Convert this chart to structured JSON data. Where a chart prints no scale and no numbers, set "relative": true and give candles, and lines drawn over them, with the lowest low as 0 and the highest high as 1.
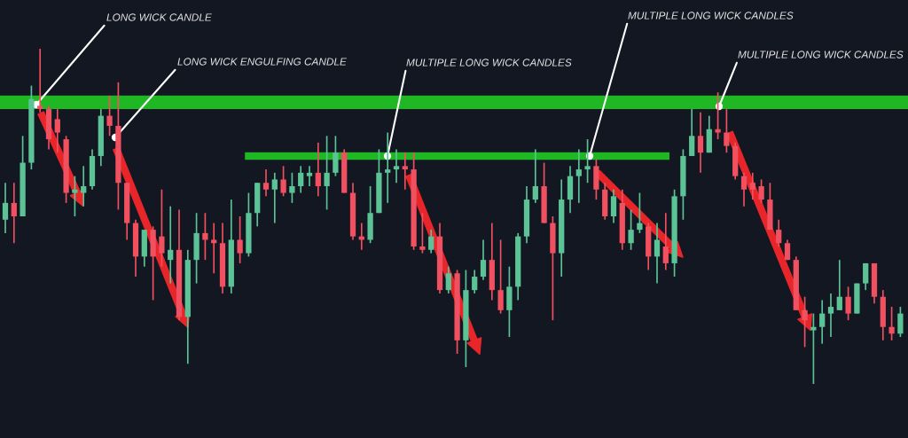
{
  "chart_data": {
    "type": "candlestick",
    "relative": true,
    "categories": [
      null,
      null,
      null,
      null,
      null,
      null,
      null,
      null,
      null,
      null,
      null,
      null,
      null,
      null,
      null,
      null,
      null,
      null,
      null,
      null,
      null,
      null,
      null,
      null,
      null,
      null,
      null,
      null,
      null,
      null,
      null,
      null,
      null,
      null,
      null,
      null,
      null,
      null,
      null,
      null,
      null,
      null,
      null,
      null,
      null,
      null,
      null,
      null,
      null,
      null,
      null,
      null,
      null,
      null,
      null,
      null,
      null,
      null,
      null,
      null,
      null,
      null,
      null,
      null,
      null,
      null,
      null,
      null,
      null,
      null,
      null,
      null,
      null,
      null,
      null,
      null,
      null,
      null,
      null,
      null,
      null,
      null,
      null,
      null,
      null,
      null,
      null,
      null,
      null,
      null,
      null,
      null,
      null,
      null,
      null,
      null,
      null,
      null,
      null,
      null,
      null,
      null,
      null,
      null
    ],
    "ohlc": [
      [
        0.49,
        0.6,
        0.45,
        0.54
      ],
      [
        0.54,
        0.6,
        0.42,
        0.5
      ],
      [
        0.5,
        0.74,
        0.5,
        0.66
      ],
      [
        0.66,
        0.89,
        0.64,
        0.85
      ],
      [
        0.83,
        1.0,
        0.81,
        0.82
      ],
      [
        0.82,
        0.83,
        0.7,
        0.73
      ],
      [
        0.79,
        0.82,
        0.69,
        0.75
      ],
      [
        0.73,
        0.74,
        0.54,
        0.57
      ],
      [
        0.57,
        0.62,
        0.5,
        0.58
      ],
      [
        0.57,
        0.65,
        0.53,
        0.59
      ],
      [
        0.59,
        0.7,
        0.58,
        0.68
      ],
      [
        0.68,
        0.82,
        0.65,
        0.8
      ],
      [
        0.8,
        0.86,
        0.74,
        0.77
      ],
      [
        0.77,
        0.9,
        0.52,
        0.6
      ],
      [
        0.6,
        0.6,
        0.43,
        0.48
      ],
      [
        0.48,
        0.49,
        0.32,
        0.38
      ],
      [
        0.38,
        0.46,
        0.35,
        0.46
      ],
      [
        0.46,
        0.47,
        0.25,
        0.38
      ],
      [
        0.44,
        0.58,
        0.35,
        0.39
      ],
      [
        0.37,
        0.53,
        0.3,
        0.4
      ],
      [
        0.4,
        0.52,
        0.19,
        0.2
      ],
      [
        0.2,
        0.4,
        0.06,
        0.37
      ],
      [
        0.37,
        0.51,
        0.3,
        0.45
      ],
      [
        0.45,
        0.51,
        0.37,
        0.43
      ],
      [
        0.43,
        0.48,
        0.33,
        0.42
      ],
      [
        0.42,
        0.48,
        0.27,
        0.29
      ],
      [
        0.29,
        0.55,
        0.27,
        0.43
      ],
      [
        0.43,
        0.5,
        0.36,
        0.39
      ],
      [
        0.39,
        0.57,
        0.38,
        0.51
      ],
      [
        0.51,
        0.6,
        0.47,
        0.6
      ],
      [
        0.6,
        0.64,
        0.56,
        0.58
      ],
      [
        0.58,
        0.63,
        0.48,
        0.61
      ],
      [
        0.61,
        0.65,
        0.56,
        0.57
      ],
      [
        0.57,
        0.63,
        0.54,
        0.59
      ],
      [
        0.59,
        0.65,
        0.57,
        0.63
      ],
      [
        0.62,
        0.65,
        0.59,
        0.63
      ],
      [
        0.63,
        0.72,
        0.56,
        0.59
      ],
      [
        0.59,
        0.74,
        0.52,
        0.63
      ],
      [
        0.63,
        0.74,
        0.62,
        0.69
      ],
      [
        0.69,
        0.7,
        0.57,
        0.57
      ],
      [
        0.57,
        0.6,
        0.43,
        0.44
      ],
      [
        0.44,
        0.48,
        0.4,
        0.43
      ],
      [
        0.43,
        0.59,
        0.42,
        0.51
      ],
      [
        0.51,
        0.7,
        0.51,
        0.63
      ],
      [
        0.63,
        0.75,
        0.54,
        0.64
      ],
      [
        0.64,
        0.7,
        0.6,
        0.65
      ],
      [
        0.65,
        0.69,
        0.58,
        0.64
      ],
      [
        0.64,
        0.69,
        0.4,
        0.41
      ],
      [
        0.41,
        0.51,
        0.39,
        0.4
      ],
      [
        0.4,
        0.46,
        0.39,
        0.44
      ],
      [
        0.44,
        0.48,
        0.27,
        0.28
      ],
      [
        0.28,
        0.35,
        0.27,
        0.33
      ],
      [
        0.33,
        0.34,
        0.09,
        0.13
      ],
      [
        0.13,
        0.34,
        0.05,
        0.28
      ],
      [
        0.28,
        0.34,
        0.27,
        0.32
      ],
      [
        0.32,
        0.43,
        0.31,
        0.37
      ],
      [
        0.37,
        0.48,
        0.25,
        0.28
      ],
      [
        0.28,
        0.43,
        0.21,
        0.22
      ],
      [
        0.22,
        0.35,
        0.14,
        0.29
      ],
      [
        0.29,
        0.45,
        0.25,
        0.44
      ],
      [
        0.44,
        0.59,
        0.42,
        0.55
      ],
      [
        0.55,
        0.7,
        0.54,
        0.59
      ],
      [
        0.59,
        0.66,
        0.48,
        0.48
      ],
      [
        0.48,
        0.5,
        0.19,
        0.39
      ],
      [
        0.39,
        0.61,
        0.32,
        0.55
      ],
      [
        0.55,
        0.65,
        0.51,
        0.62
      ],
      [
        0.62,
        0.7,
        0.54,
        0.64
      ],
      [
        0.64,
        0.73,
        0.6,
        0.65
      ],
      [
        0.65,
        0.67,
        0.55,
        0.58
      ],
      [
        0.58,
        0.6,
        0.49,
        0.5
      ],
      [
        0.5,
        0.58,
        0.48,
        0.56
      ],
      [
        0.54,
        0.58,
        0.4,
        0.42
      ],
      [
        0.42,
        0.52,
        0.4,
        0.46
      ],
      [
        0.46,
        0.57,
        0.45,
        0.48
      ],
      [
        0.47,
        0.48,
        0.34,
        0.38
      ],
      [
        0.38,
        0.48,
        0.3,
        0.43
      ],
      [
        0.41,
        0.51,
        0.34,
        0.36
      ],
      [
        0.36,
        0.58,
        0.32,
        0.56
      ],
      [
        0.56,
        0.7,
        0.49,
        0.68
      ],
      [
        0.68,
        0.82,
        0.68,
        0.74
      ],
      [
        0.74,
        0.81,
        0.63,
        0.69
      ],
      [
        0.69,
        0.8,
        0.69,
        0.76
      ],
      [
        0.76,
        0.87,
        0.73,
        0.75
      ],
      [
        0.75,
        0.82,
        0.69,
        0.71
      ],
      [
        0.71,
        0.72,
        0.61,
        0.62
      ],
      [
        0.62,
        0.63,
        0.53,
        0.58
      ],
      [
        0.6,
        0.63,
        0.55,
        0.58
      ],
      [
        0.59,
        0.61,
        0.54,
        0.55
      ],
      [
        0.55,
        0.6,
        0.46,
        0.46
      ],
      [
        0.46,
        0.49,
        0.41,
        0.42
      ],
      [
        0.42,
        0.43,
        0.37,
        0.37
      ],
      [
        0.37,
        0.38,
        0.22,
        0.22
      ],
      [
        0.22,
        0.26,
        0.11,
        0.19
      ],
      [
        0.16,
        0.21,
        0.0,
        0.17
      ],
      [
        0.17,
        0.25,
        0.12,
        0.21
      ],
      [
        0.21,
        0.27,
        0.14,
        0.23
      ],
      [
        0.22,
        0.37,
        0.22,
        0.26
      ],
      [
        0.26,
        0.29,
        0.19,
        0.21
      ],
      [
        0.21,
        0.3,
        0.21,
        0.3
      ],
      [
        0.3,
        0.36,
        0.28,
        0.36
      ],
      [
        0.36,
        0.36,
        0.24,
        0.26
      ],
      [
        0.26,
        0.28,
        0.13,
        0.17
      ],
      [
        0.17,
        0.23,
        0.13,
        0.15
      ],
      [
        0.15,
        0.23,
        0.14,
        0.21
      ]
    ],
    "series": [
      {
        "type": "line",
        "color": "#1fb824",
        "values": [
          null,
          null,
          null,
          null,
          null,
          null,
          null,
          null,
          null,
          null,
          null,
          null,
          null,
          null,
          null,
          null,
          null,
          null,
          null,
          null,
          null,
          null,
          null,
          null,
          null,
          null,
          null,
          null,
          0.68,
          0.68,
          0.68,
          0.68,
          0.68,
          0.68,
          0.68,
          0.68,
          0.68,
          0.68,
          0.68,
          0.68,
          0.68,
          0.68,
          0.68,
          0.68,
          0.68,
          0.68,
          0.68,
          0.68,
          0.68,
          0.68,
          0.68,
          0.68,
          0.68,
          0.68,
          0.68,
          0.68,
          0.68,
          0.68,
          0.68,
          0.68,
          0.68,
          0.68,
          0.68,
          0.68,
          0.68,
          0.68,
          0.68,
          0.68,
          0.68,
          0.68,
          0.68,
          0.68,
          0.68,
          0.68,
          0.68,
          0.68,
          0.68,
          null,
          null,
          null,
          null,
          null,
          null,
          null,
          null,
          null,
          null,
          null,
          null,
          null,
          null,
          null,
          null,
          null,
          null,
          null,
          null,
          null,
          null,
          null,
          null,
          null,
          null,
          null
        ]
      }
    ],
    "ref_lines": [
      {
        "axis": "y",
        "value": 0.84,
        "color": "#1fb824"
      }
    ],
    "annotations": [
      "LONG WICK CANDLE",
      "LONG WICK ENGULFING CANDLE",
      "MULTIPLE LONG WICK CANDLES",
      "MULTIPLE LONG WICK CANDLES",
      "MULTIPLE LONG WICK CANDLES"
    ]
  }
}
